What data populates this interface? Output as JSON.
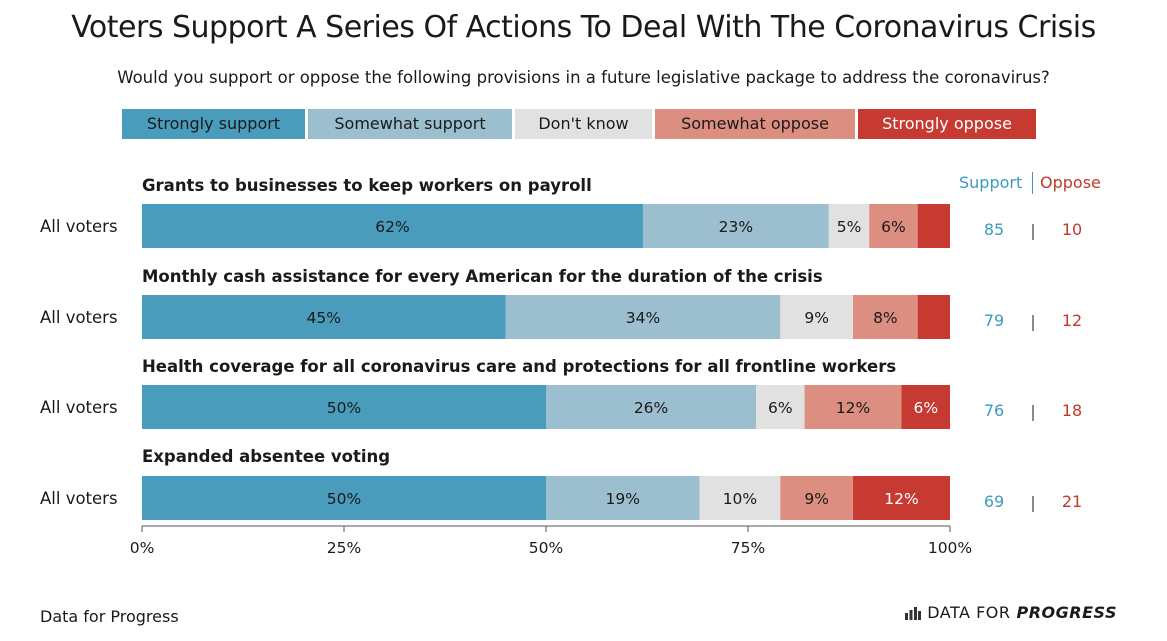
{
  "title": "Voters Support A Series Of Actions To Deal With The Coronavirus Crisis",
  "subtitle": "Would you support or oppose the following provisions in a future legislative package to address the coronavirus?",
  "legend": [
    {
      "label": "Strongly support",
      "color": "#4a9cbd",
      "text_color": "#1a1a1a"
    },
    {
      "label": "Somewhat support",
      "color": "#9cbfcf",
      "text_color": "#1a1a1a"
    },
    {
      "label": "Don't know",
      "color": "#e1e1e1",
      "text_color": "#1a1a1a"
    },
    {
      "label": "Somewhat oppose",
      "color": "#dc8e80",
      "text_color": "#1a1a1a"
    },
    {
      "label": "Strongly oppose",
      "color": "#c63a32",
      "text_color": "#ffffff"
    }
  ],
  "headers": {
    "support": "Support",
    "oppose": "Oppose"
  },
  "chart_data": {
    "type": "bar",
    "orientation": "horizontal",
    "stacked": true,
    "xlim": [
      0,
      100
    ],
    "xticks": [
      "0%",
      "25%",
      "50%",
      "75%",
      "100%"
    ],
    "series_names": [
      "Strongly support",
      "Somewhat support",
      "Don't know",
      "Somewhat oppose",
      "Strongly oppose"
    ],
    "rows": [
      {
        "question": "Grants to businesses to keep workers on payroll",
        "group": "All voters",
        "values": [
          62,
          23,
          5,
          6,
          4
        ],
        "labels": [
          "62%",
          "23%",
          "5%",
          "6%",
          ""
        ],
        "support": "85",
        "oppose": "10"
      },
      {
        "question": "Monthly cash assistance for every American for the duration of the crisis",
        "group": "All voters",
        "values": [
          45,
          34,
          9,
          8,
          4
        ],
        "labels": [
          "45%",
          "34%",
          "9%",
          "8%",
          ""
        ],
        "support": "79",
        "oppose": "12"
      },
      {
        "question": "Health coverage for all coronavirus care and protections for all frontline workers",
        "group": "All voters",
        "values": [
          50,
          26,
          6,
          12,
          6
        ],
        "labels": [
          "50%",
          "26%",
          "6%",
          "12%",
          "6%"
        ],
        "support": "76",
        "oppose": "18"
      },
      {
        "question": "Expanded absentee voting",
        "group": "All voters",
        "values": [
          50,
          19,
          10,
          9,
          12
        ],
        "labels": [
          "50%",
          "19%",
          "10%",
          "9%",
          "12%"
        ],
        "support": "69",
        "oppose": "21"
      }
    ]
  },
  "footer": {
    "source": "Data for Progress",
    "logo_light": "DATA FOR",
    "logo_bold": "PROGRESS"
  },
  "colors": {
    "support": "#3d9bbf",
    "oppose": "#c0392b",
    "divider": "#1a1a1a"
  }
}
